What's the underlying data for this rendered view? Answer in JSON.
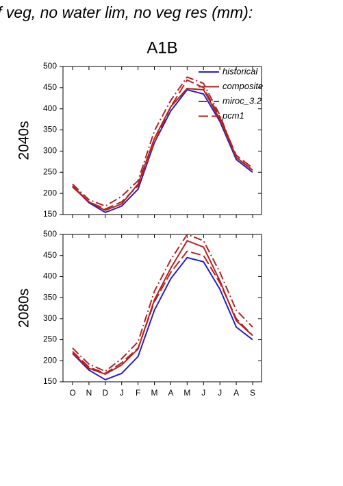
{
  "title": "f veg, no water lim, no veg res (mm):",
  "chart_data": [
    {
      "type": "line",
      "title": "A1B",
      "y_label": "2040s",
      "legend": "top-right",
      "ylim": [
        150,
        500
      ],
      "yticks": [
        150,
        200,
        250,
        300,
        350,
        400,
        450,
        500
      ],
      "series": [
        {
          "name": "historical",
          "color": "#2222bb",
          "dash": "solid",
          "values": [
            217,
            178,
            155,
            170,
            210,
            320,
            395,
            445,
            435,
            370,
            280,
            250
          ]
        },
        {
          "name": "composite",
          "color": "#b22222",
          "dash": "solid",
          "values": [
            218,
            180,
            160,
            175,
            222,
            330,
            405,
            448,
            445,
            375,
            285,
            255
          ]
        },
        {
          "name": "miroc_3.2",
          "color": "#b22222",
          "dash": "dashdot",
          "values": [
            222,
            185,
            170,
            193,
            230,
            348,
            420,
            475,
            460,
            385,
            285,
            255
          ]
        },
        {
          "name": "pcm1",
          "color": "#b22222",
          "dash": "dash",
          "values": [
            215,
            180,
            163,
            180,
            218,
            320,
            405,
            468,
            450,
            380,
            290,
            260
          ]
        }
      ]
    },
    {
      "type": "line",
      "y_label": "2080s",
      "categories": [
        "O",
        "N",
        "D",
        "J",
        "F",
        "M",
        "A",
        "M",
        "J",
        "J",
        "A",
        "S"
      ],
      "ylim": [
        150,
        500
      ],
      "yticks": [
        150,
        200,
        250,
        300,
        350,
        400,
        450,
        500
      ],
      "series": [
        {
          "name": "historical",
          "color": "#2222bb",
          "dash": "solid",
          "values": [
            217,
            178,
            155,
            170,
            210,
            320,
            395,
            445,
            435,
            370,
            280,
            250
          ]
        },
        {
          "name": "composite",
          "color": "#b22222",
          "dash": "solid",
          "values": [
            218,
            182,
            168,
            190,
            228,
            345,
            420,
            485,
            470,
            390,
            295,
            260
          ]
        },
        {
          "name": "miroc_3.2",
          "color": "#b22222",
          "dash": "dashdot",
          "values": [
            230,
            192,
            175,
            205,
            245,
            365,
            440,
            500,
            485,
            410,
            320,
            280
          ]
        },
        {
          "name": "pcm1",
          "color": "#b22222",
          "dash": "dash",
          "values": [
            222,
            185,
            170,
            195,
            230,
            340,
            410,
            460,
            450,
            385,
            300,
            260
          ]
        }
      ]
    }
  ]
}
